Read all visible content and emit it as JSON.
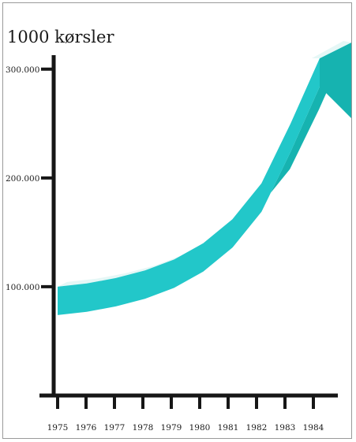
{
  "chart_data": {
    "type": "area",
    "title": "1000 kørsler",
    "xlabel": "",
    "ylabel": "",
    "x_ticks": [
      "1975",
      "1976",
      "1977",
      "1978",
      "1979",
      "1980",
      "1981",
      "1982",
      "1983",
      "1984"
    ],
    "y_ticks": [
      "100.000",
      "200.000",
      "300.000"
    ],
    "y_tick_values": [
      100,
      200,
      300
    ],
    "ylim": [
      0,
      310
    ],
    "series": [
      {
        "x": [
          1975,
          1976,
          1977,
          1978,
          1979,
          1980,
          1981,
          1982,
          1983,
          1984
        ],
        "y": [
          100,
          103,
          108,
          115,
          125,
          140,
          162,
          195,
          250,
          310
        ]
      }
    ],
    "grid": false,
    "legend": "none",
    "style": "3D ribbon",
    "colors": {
      "ribbon_front": "#22c7c9",
      "ribbon_side": "#16b3b0",
      "ribbon_top": "#e5f7f6",
      "axis": "#161616"
    }
  }
}
